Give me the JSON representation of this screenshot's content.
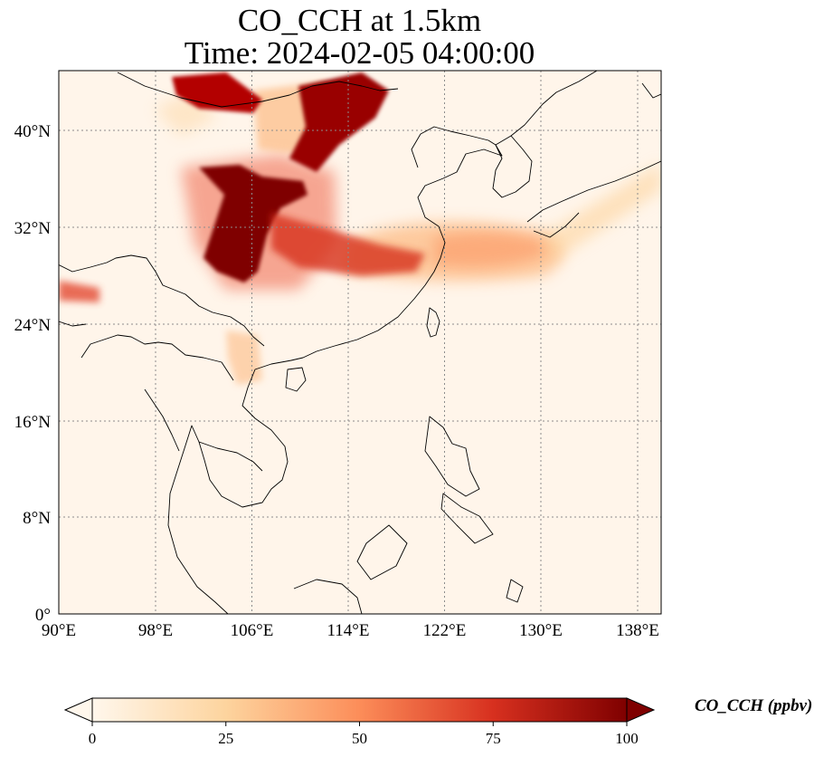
{
  "title_line1": "CO_CCH at 1.5km",
  "title_line2": "Time: 2024-02-05 04:00:00",
  "map": {
    "lon_range": [
      90,
      140
    ],
    "lat_range": [
      0,
      45
    ],
    "lon_ticks": [
      "90°E",
      "98°E",
      "106°E",
      "114°E",
      "122°E",
      "130°E",
      "138°E"
    ],
    "lat_ticks": [
      "0°",
      "8°N",
      "16°N",
      "24°N",
      "32°N",
      "40°N"
    ],
    "gridlines": true,
    "colormap": "OrRd",
    "plume_color_high": "#7f0000",
    "background_color": "#fff5ea"
  },
  "colorbar": {
    "label": "CO_CCH (ppbv)",
    "ticks": [
      "0",
      "25",
      "50",
      "75",
      "100"
    ],
    "min": 0,
    "max": 100,
    "extend": "both",
    "colors": [
      "#fff7ec",
      "#fdd49e",
      "#fc8d59",
      "#d7301f",
      "#7f0000"
    ]
  }
}
